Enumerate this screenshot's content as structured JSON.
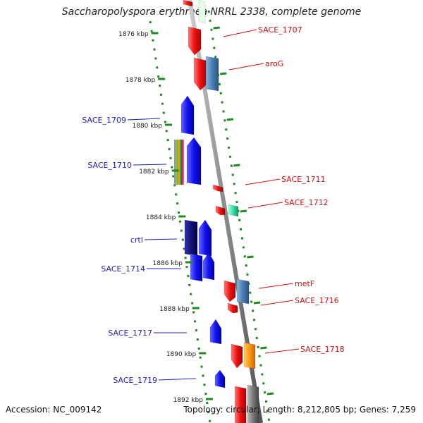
{
  "title": "Saccharopolyspora erythraea NRRL 2338, complete genome",
  "footer": {
    "accession": "Accession: NC_009142",
    "topology": "Topology: circular; Length: 8,212,805 bp; Genes: 7,259"
  },
  "scale_labels": [
    "1876 kbp",
    "1878 kbp",
    "1880 kbp",
    "1882 kbp",
    "1884 kbp",
    "1886 kbp",
    "1888 kbp",
    "1890 kbp",
    "1892 kbp"
  ],
  "gene_labels_left": [
    "SACE_1709",
    "SACE_1710",
    "crtI",
    "SACE_1714",
    "SACE_1717",
    "SACE_1719"
  ],
  "gene_labels_right": [
    "SACE_1707",
    "aroG",
    "SACE_1711",
    "SACE_1712",
    "metF",
    "SACE_1716",
    "SACE_1718"
  ],
  "colors": {
    "backbone": "#8a8a8a",
    "tick": "#1f8a1f",
    "forward_label": "#1f1fb8",
    "reverse_label": "#cc1111",
    "red": "#ee1111",
    "blue": "#1111ee",
    "navy": "#111177",
    "steelblue": "#4a7fb5",
    "teal": "#33ddaa",
    "orange": "#ff9911",
    "gray": "#777777"
  }
}
